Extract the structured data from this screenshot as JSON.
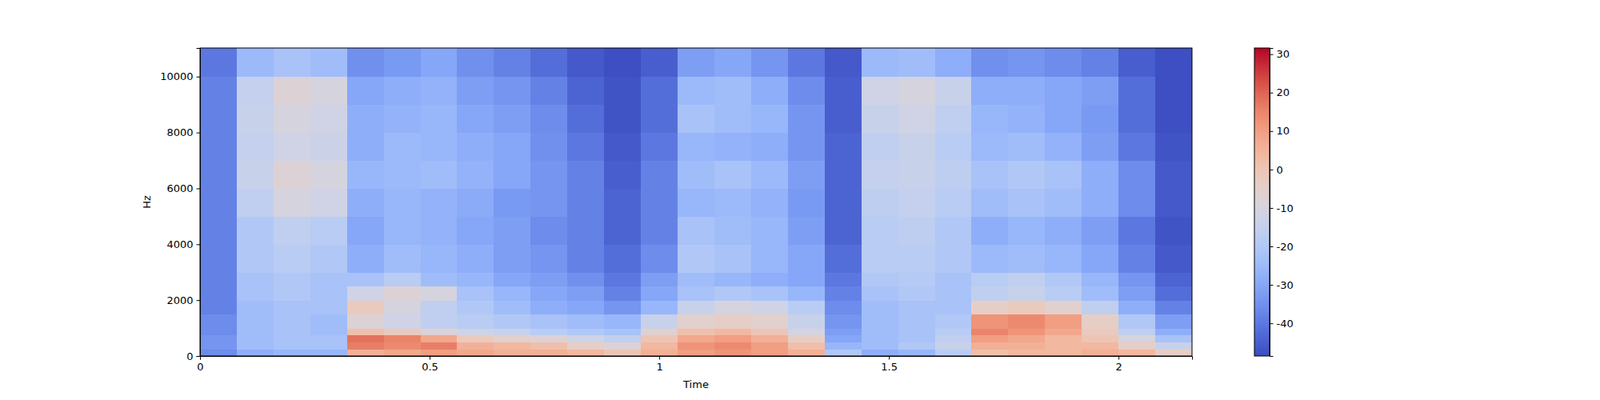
{
  "chart_data": {
    "type": "heatmap",
    "x_label": "Time",
    "y_label": "Hz",
    "x": [
      0,
      0.08,
      0.16,
      0.24,
      0.32,
      0.4,
      0.48,
      0.56,
      0.64,
      0.72,
      0.8,
      0.88,
      0.96,
      1.04,
      1.12,
      1.2,
      1.28,
      1.36,
      1.44,
      1.52,
      1.6,
      1.68,
      1.76,
      1.84,
      1.92,
      2.0,
      2.08,
      2.16
    ],
    "y": [
      0,
      250,
      500,
      750,
      1000,
      1500,
      2000,
      2500,
      3000,
      4000,
      5000,
      6000,
      7000,
      8000,
      9000,
      10000,
      11025
    ],
    "cells": [
      [
        -36,
        -28,
        -26,
        -26,
        6,
        8,
        10,
        8,
        6,
        6,
        4,
        0,
        6,
        10,
        12,
        10,
        6,
        -20,
        -28,
        -26,
        -18,
        2,
        4,
        4,
        6,
        4,
        -4
      ],
      [
        -34,
        -24,
        -22,
        -22,
        16,
        14,
        16,
        6,
        4,
        2,
        -4,
        -8,
        4,
        12,
        14,
        10,
        2,
        -26,
        -24,
        -20,
        -14,
        6,
        6,
        4,
        4,
        -4,
        -14
      ],
      [
        -34,
        -24,
        -22,
        -22,
        18,
        15,
        8,
        -2,
        -6,
        -8,
        -12,
        -16,
        0,
        8,
        10,
        6,
        -4,
        -30,
        -24,
        -22,
        -16,
        10,
        8,
        4,
        0,
        -10,
        -22
      ],
      [
        -36,
        -24,
        -22,
        -24,
        2,
        -2,
        -8,
        -12,
        -14,
        -18,
        -20,
        -22,
        -6,
        2,
        4,
        0,
        -10,
        -32,
        -24,
        -22,
        -18,
        15,
        12,
        8,
        -2,
        -16,
        -28
      ],
      [
        -36,
        -24,
        -22,
        -24,
        -8,
        -12,
        -16,
        -18,
        -20,
        -22,
        -24,
        -26,
        -14,
        -6,
        -4,
        -6,
        -14,
        -34,
        -24,
        -22,
        -20,
        12,
        14,
        10,
        -4,
        -20,
        -32
      ],
      [
        -38,
        -24,
        -22,
        -22,
        -2,
        -10,
        -16,
        -20,
        -24,
        -28,
        -30,
        -34,
        -26,
        -14,
        -10,
        -12,
        -18,
        -36,
        -24,
        -22,
        -22,
        -4,
        -2,
        -6,
        -16,
        -28,
        -38
      ],
      [
        -38,
        -22,
        -20,
        -22,
        -12,
        -8,
        -10,
        -22,
        -26,
        -30,
        -32,
        -38,
        -30,
        -22,
        -20,
        -22,
        -26,
        -38,
        -22,
        -20,
        -22,
        -16,
        -14,
        -18,
        -24,
        -32,
        -42
      ],
      [
        -38,
        -22,
        -20,
        -22,
        -22,
        -18,
        -24,
        -26,
        -30,
        -32,
        -35,
        -40,
        -32,
        -24,
        -26,
        -28,
        -30,
        -40,
        -20,
        -19,
        -22,
        -18,
        -16,
        -20,
        -26,
        -34,
        -44
      ],
      [
        -38,
        -20,
        -18,
        -20,
        -28,
        -24,
        -26,
        -28,
        -32,
        -34,
        -38,
        -42,
        -36,
        -20,
        -22,
        -26,
        -30,
        -42,
        -18,
        -18,
        -20,
        -25,
        -24,
        -26,
        -30,
        -38,
        -46
      ],
      [
        -38,
        -20,
        -16,
        -18,
        -30,
        -26,
        -27,
        -30,
        -32,
        -36,
        -38,
        -44,
        -38,
        -22,
        -24,
        -26,
        -32,
        -44,
        -18,
        -17,
        -20,
        -28,
        -26,
        -28,
        -32,
        -40,
        -47
      ],
      [
        -38,
        -16,
        -10,
        -12,
        -28,
        -26,
        -27,
        -29,
        -33,
        -34,
        -38,
        -44,
        -38,
        -26,
        -25,
        -27,
        -33,
        -44,
        -17,
        -15,
        -18,
        -24,
        -22,
        -24,
        -28,
        -36,
        -46
      ],
      [
        -38,
        -14,
        -8,
        -10,
        -26,
        -25,
        -24,
        -27,
        -30,
        -34,
        -38,
        -45,
        -38,
        -24,
        -22,
        -25,
        -32,
        -44,
        -15,
        -14,
        -17,
        -22,
        -20,
        -22,
        -28,
        -36,
        -46
      ],
      [
        -38,
        -15,
        -12,
        -13,
        -28,
        -25,
        -26,
        -28,
        -30,
        -35,
        -40,
        -46,
        -40,
        -26,
        -27,
        -28,
        -34,
        -44,
        -16,
        -14,
        -18,
        -25,
        -24,
        -27,
        -32,
        -40,
        -47
      ],
      [
        -38,
        -14,
        -10,
        -12,
        -28,
        -27,
        -26,
        -30,
        -32,
        -36,
        -42,
        -47,
        -42,
        -22,
        -24,
        -26,
        -34,
        -45,
        -14,
        -12,
        -16,
        -26,
        -27,
        -30,
        -33,
        -42,
        -48
      ],
      [
        -38,
        -15,
        -8,
        -10,
        -30,
        -28,
        -27,
        -32,
        -34,
        -38,
        -44,
        -47,
        -42,
        -25,
        -24,
        -28,
        -36,
        -45,
        -12,
        -10,
        -14,
        -28,
        -28,
        -30,
        -32,
        -42,
        -48
      ],
      [
        -40,
        -25,
        -22,
        -24,
        -35,
        -33,
        -30,
        -35,
        -38,
        -42,
        -46,
        -48,
        -45,
        -32,
        -30,
        -34,
        -40,
        -46,
        -25,
        -24,
        -28,
        -35,
        -34,
        -36,
        -38,
        -45,
        -48
      ]
    ],
    "xlim": [
      0,
      2.16
    ],
    "ylim": [
      0,
      11025
    ],
    "xticks": [
      0,
      0.5,
      1,
      1.5,
      2
    ],
    "yticks": [
      0,
      2000,
      4000,
      6000,
      8000,
      10000
    ],
    "colorbar": {
      "range": [
        -48.5,
        31.6
      ],
      "ticks": [
        -40,
        -30,
        -20,
        -10,
        0,
        10,
        20,
        30
      ]
    }
  }
}
